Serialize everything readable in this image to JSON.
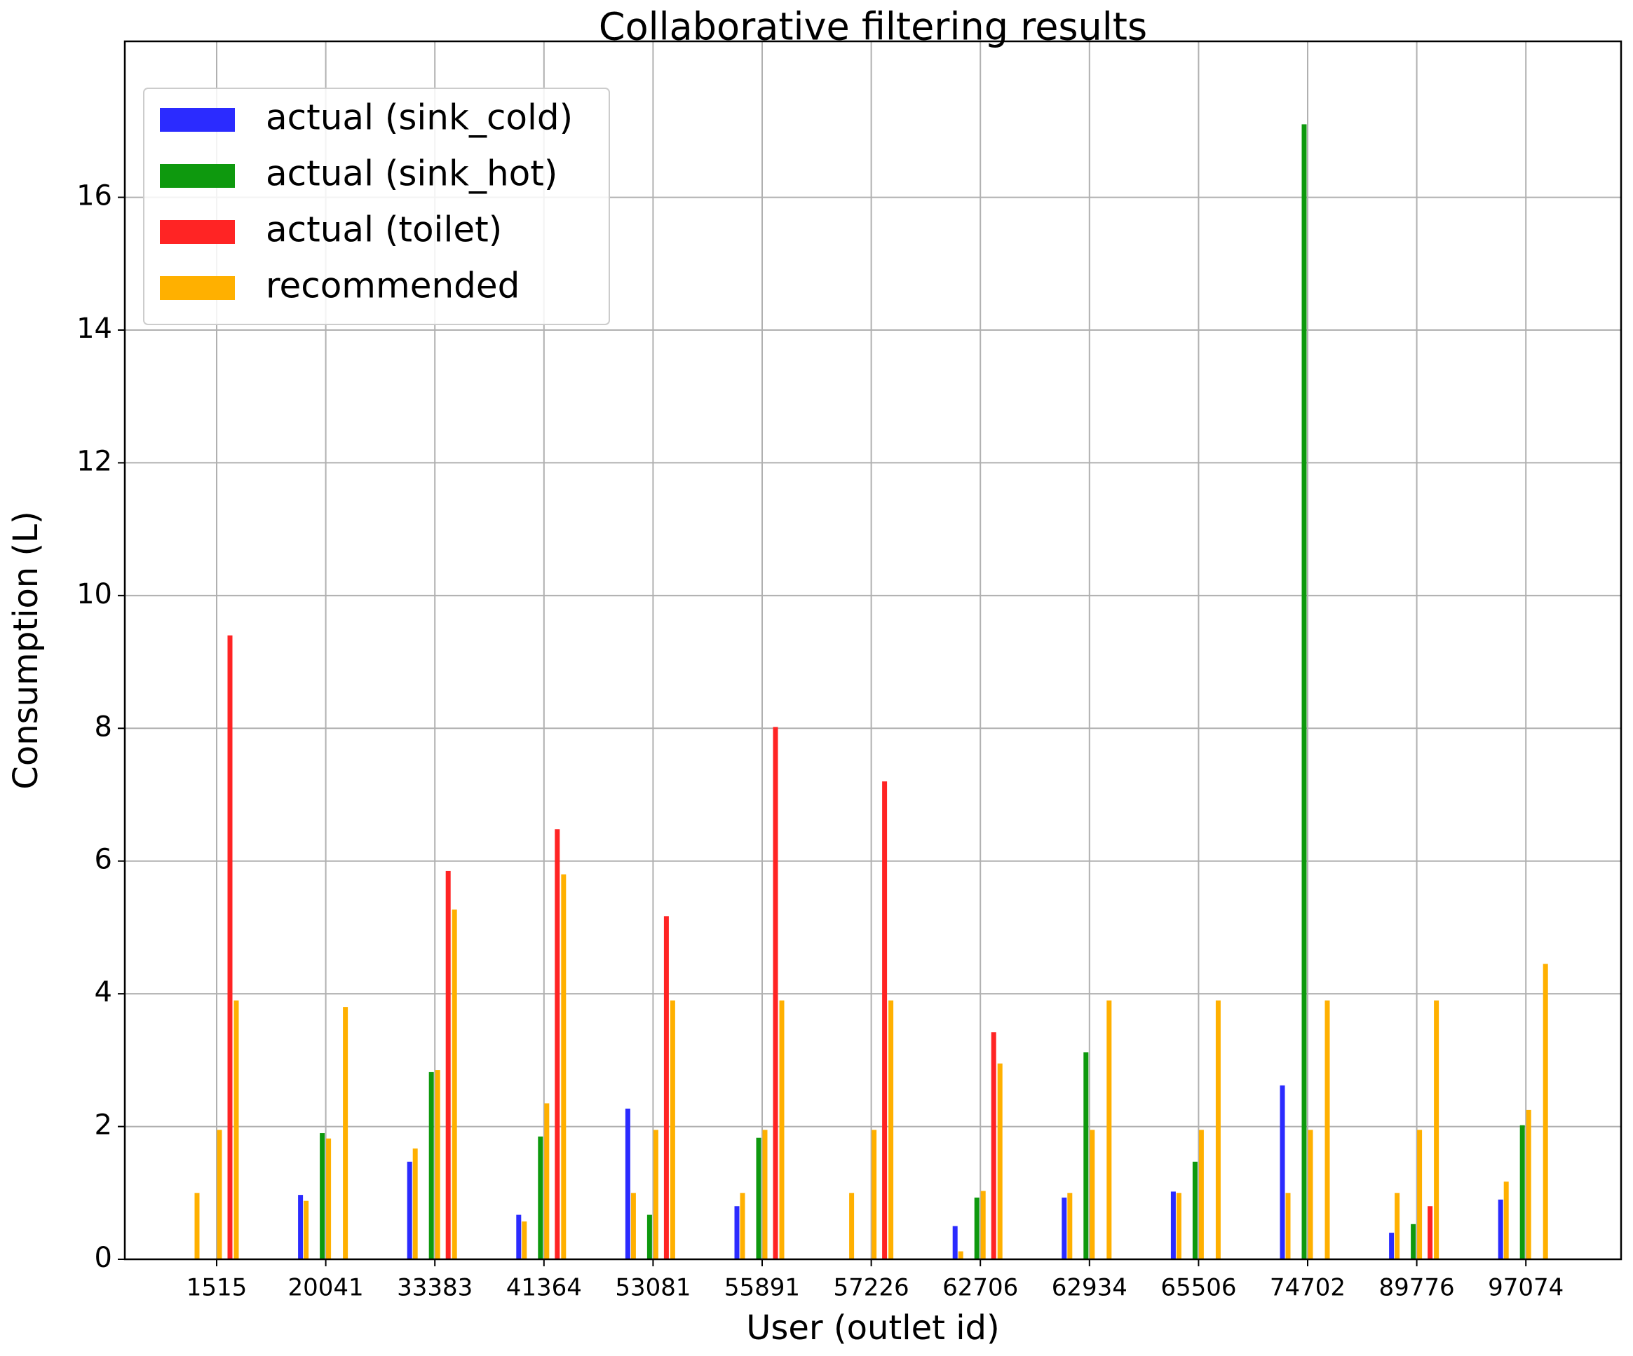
{
  "chart_data": {
    "type": "bar",
    "title": "Collaborative filtering results",
    "xlabel": "User (outlet id)",
    "ylabel": "Consumption (L)",
    "categories": [
      "1515",
      "20041",
      "33383",
      "41364",
      "53081",
      "55891",
      "57226",
      "62706",
      "62934",
      "65506",
      "74702",
      "89776",
      "97074"
    ],
    "series": [
      {
        "name": "actual (sink_cold)",
        "color": "#2b2bff",
        "values": [
          null,
          0.97,
          1.47,
          0.67,
          2.27,
          0.8,
          null,
          0.5,
          0.93,
          1.02,
          2.62,
          0.4,
          0.9
        ],
        "recommended_values": [
          1.0,
          0.88,
          1.67,
          0.57,
          1.0,
          1.0,
          1.0,
          0.12,
          1.0,
          1.0,
          1.0,
          1.0,
          1.17
        ]
      },
      {
        "name": "actual (sink_hot)",
        "color": "#0e990e",
        "values": [
          null,
          1.9,
          2.82,
          1.85,
          0.67,
          1.83,
          null,
          0.93,
          3.12,
          1.47,
          17.1,
          0.53,
          2.02
        ],
        "recommended_values": [
          1.95,
          1.82,
          2.85,
          2.35,
          1.95,
          1.95,
          1.95,
          1.03,
          1.95,
          1.95,
          1.95,
          1.95,
          2.25
        ]
      },
      {
        "name": "actual (toilet)",
        "color": "#ff2424",
        "values": [
          9.4,
          null,
          5.85,
          6.48,
          5.17,
          8.02,
          7.2,
          3.42,
          null,
          null,
          null,
          0.8,
          null
        ],
        "recommended_values": [
          3.9,
          3.8,
          5.27,
          5.8,
          3.9,
          3.9,
          3.9,
          2.95,
          3.9,
          3.9,
          3.9,
          3.9,
          4.45
        ]
      }
    ],
    "recommended": {
      "name": "recommended",
      "color": "#ffb000"
    },
    "ylim": [
      0,
      18.35
    ],
    "yticks": [
      0,
      2,
      4,
      6,
      8,
      10,
      12,
      14,
      16
    ],
    "grid": true,
    "legend": "upper left"
  }
}
